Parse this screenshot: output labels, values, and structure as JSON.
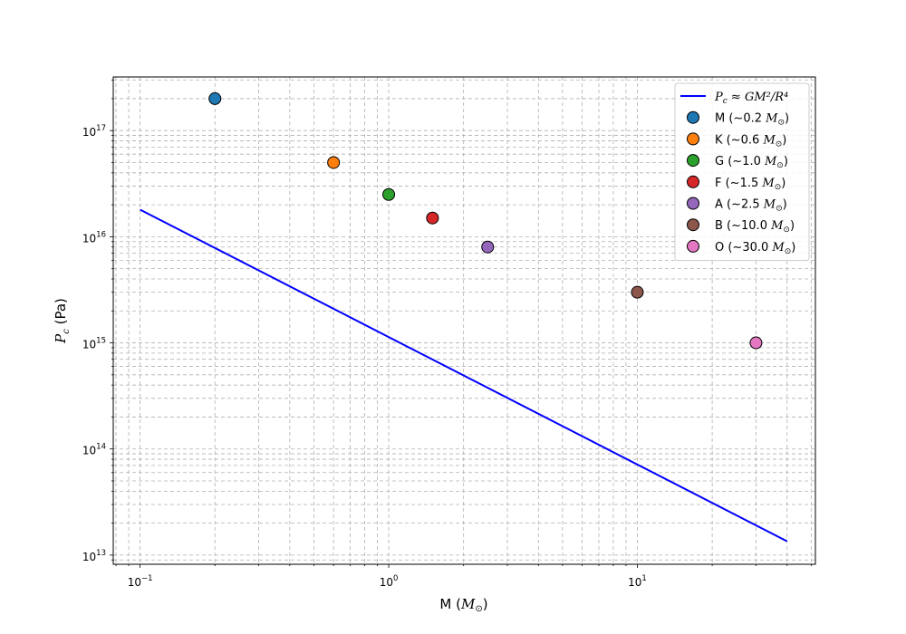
{
  "chart_data": {
    "type": "scatter",
    "title": "",
    "xlabel": "M (M⊙)",
    "ylabel": "Pc (Pa)",
    "x_scale": "log",
    "y_scale": "log",
    "xlim": [
      0.078,
      52
    ],
    "ylim": [
      8200000000000.0,
      3.2e+17
    ],
    "grid": true,
    "grid_which": "both",
    "legend_location": "upper right",
    "x_ticks": [
      {
        "value": 0.1,
        "base": "10",
        "exp": "−1"
      },
      {
        "value": 1,
        "base": "10",
        "exp": "0"
      },
      {
        "value": 10,
        "base": "10",
        "exp": "1"
      }
    ],
    "y_ticks": [
      {
        "value": 10000000000000.0,
        "base": "10",
        "exp": "13"
      },
      {
        "value": 100000000000000.0,
        "base": "10",
        "exp": "14"
      },
      {
        "value": 1000000000000000.0,
        "base": "10",
        "exp": "15"
      },
      {
        "value": 1e+16,
        "base": "10",
        "exp": "16"
      },
      {
        "value": 1e+17,
        "base": "10",
        "exp": "17"
      }
    ],
    "line": {
      "label": "Pc ≈ GM²/R⁴",
      "color": "#0000ff",
      "x": [
        0.1,
        40
      ],
      "y": [
        1.8e+16,
        13500000000000.0
      ]
    },
    "series": [
      {
        "name": "M (~0.2 M⊙)",
        "x": 0.2,
        "y": 2e+17,
        "color": "#1f77b4"
      },
      {
        "name": "K (~0.6 M⊙)",
        "x": 0.6,
        "y": 5e+16,
        "color": "#ff7f0e"
      },
      {
        "name": "G (~1.0 M⊙)",
        "x": 1.0,
        "y": 2.5e+16,
        "color": "#2ca02c"
      },
      {
        "name": "F (~1.5 M⊙)",
        "x": 1.5,
        "y": 1.5e+16,
        "color": "#d62728"
      },
      {
        "name": "A (~2.5 M⊙)",
        "x": 2.5,
        "y": 8000000000000000.0,
        "color": "#9467bd"
      },
      {
        "name": "B (~10.0 M⊙)",
        "x": 10.0,
        "y": 3000000000000000.0,
        "color": "#8c564b"
      },
      {
        "name": "O (~30.0 M⊙)",
        "x": 30.0,
        "y": 1000000000000000.0,
        "color": "#e377c2"
      }
    ]
  }
}
